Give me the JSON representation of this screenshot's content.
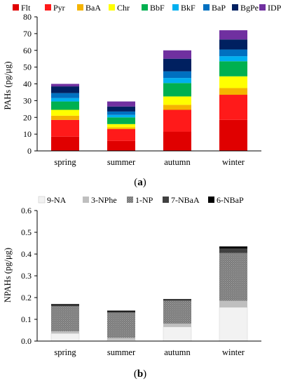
{
  "chart_data": [
    {
      "type": "bar",
      "stacked": true,
      "panel_label": "(a)",
      "ylabel": "PAHs (pg/μg)",
      "xlabel": "",
      "ylim": [
        0,
        80
      ],
      "yticks": [
        0,
        10,
        20,
        30,
        40,
        50,
        60,
        70,
        80
      ],
      "grid": false,
      "legend_position": "top",
      "categories": [
        "spring",
        "summer",
        "autumn",
        "winter"
      ],
      "series": [
        {
          "name": "Flt",
          "color": "#e00000",
          "values": [
            8.5,
            6.0,
            11.5,
            18.5
          ]
        },
        {
          "name": "Pyr",
          "color": "#ff1a1a",
          "values": [
            10.0,
            7.0,
            13.0,
            15.0
          ]
        },
        {
          "name": "BaA",
          "color": "#f5b400",
          "values": [
            2.5,
            1.0,
            3.0,
            4.0
          ]
        },
        {
          "name": "Chr",
          "color": "#ffff00",
          "values": [
            3.5,
            2.0,
            5.0,
            7.0
          ]
        },
        {
          "name": "BbF",
          "color": "#00b050",
          "values": [
            5.0,
            4.0,
            8.0,
            9.0
          ]
        },
        {
          "name": "BkF",
          "color": "#00b0f0",
          "values": [
            2.0,
            1.5,
            3.0,
            3.0
          ]
        },
        {
          "name": "BaP",
          "color": "#0070c0",
          "values": [
            3.0,
            2.0,
            4.0,
            4.0
          ]
        },
        {
          "name": "BgPe",
          "color": "#002060",
          "values": [
            4.0,
            3.0,
            7.5,
            6.0
          ]
        },
        {
          "name": "IDP",
          "color": "#7030a0",
          "values": [
            1.5,
            3.0,
            5.0,
            5.5
          ]
        }
      ]
    },
    {
      "type": "bar",
      "stacked": true,
      "panel_label": "(b)",
      "ylabel": "NPAHs (pg/μg)",
      "xlabel": "",
      "ylim": [
        0,
        0.6
      ],
      "yticks": [
        "0.0",
        "0.1",
        "0.2",
        "0.3",
        "0.4",
        "0.5",
        "0.6"
      ],
      "grid": false,
      "legend_position": "top",
      "categories": [
        "spring",
        "summer",
        "autumn",
        "winter"
      ],
      "series": [
        {
          "name": "9-NA",
          "color": "#f2f2f2",
          "values": [
            0.035,
            0.005,
            0.065,
            0.155
          ]
        },
        {
          "name": "3-NPhe",
          "color": "#bfbfbf",
          "values": [
            0.01,
            0.01,
            0.015,
            0.03
          ]
        },
        {
          "name": "1-NP",
          "color": "#808080",
          "values": [
            0.115,
            0.115,
            0.105,
            0.22
          ]
        },
        {
          "name": "7-NBaA",
          "color": "#404040",
          "values": [
            0.005,
            0.005,
            0.005,
            0.02
          ]
        },
        {
          "name": "6-NBaP",
          "color": "#000000",
          "values": [
            0.005,
            0.005,
            0.003,
            0.01
          ]
        }
      ]
    }
  ]
}
